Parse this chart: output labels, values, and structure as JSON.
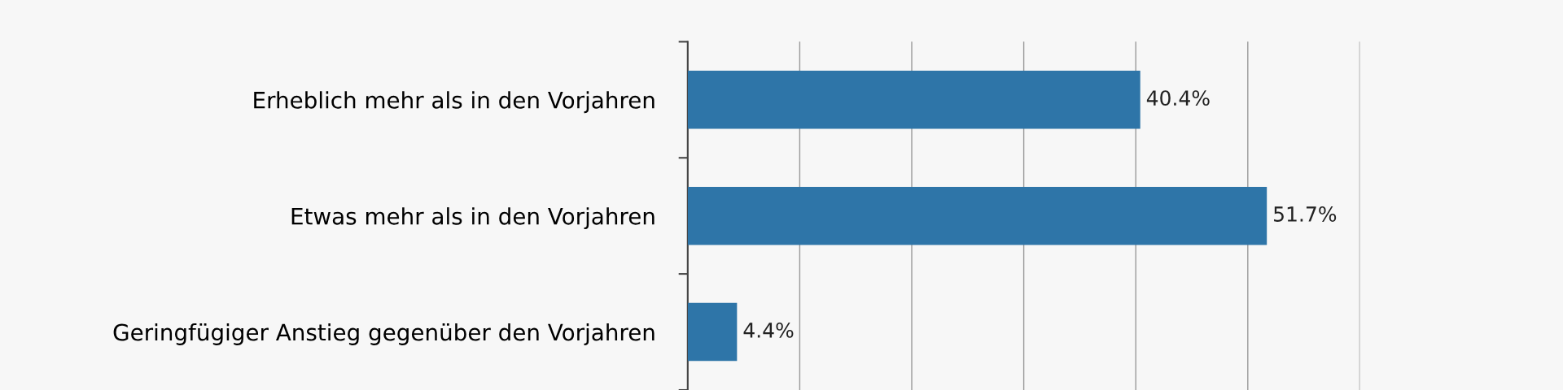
{
  "chart_data": {
    "type": "bar",
    "orientation": "horizontal",
    "categories": [
      "Erheblich mehr als in den Vorjahren",
      "Etwas mehr als in den Vorjahren",
      "Geringfügiger Anstieg gegenüber den Vorjahren"
    ],
    "values": [
      40.4,
      51.7,
      4.4
    ],
    "color": "#2e75a8",
    "value_labels": [
      "40.4%",
      "51.7%",
      "4.4%"
    ],
    "xlim": [
      0,
      60
    ],
    "xticks": [
      {
        "value": 0,
        "label": null
      },
      {
        "value": 10,
        "label": null
      },
      {
        "value": 20,
        "label": null
      },
      {
        "value": 30,
        "label": null
      },
      {
        "value": 40,
        "label": null
      },
      {
        "value": 50,
        "label": null
      },
      {
        "value": 60,
        "label": null
      }
    ],
    "grid": "x",
    "tick_labels": "y"
  }
}
